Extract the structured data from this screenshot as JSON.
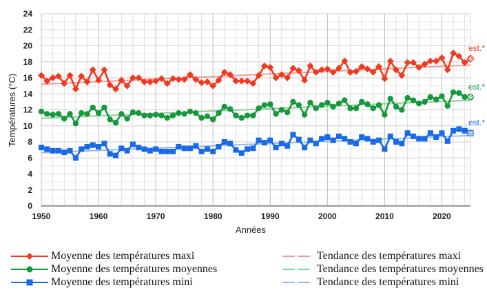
{
  "chart_data": {
    "type": "line",
    "title": "",
    "xlabel": "Années",
    "ylabel": "Températures (°C)",
    "xlim": [
      1950,
      2025
    ],
    "ylim": [
      0,
      24
    ],
    "x_ticks": [
      1950,
      1960,
      1970,
      1980,
      1990,
      2000,
      2010,
      2020
    ],
    "y_ticks": [
      0,
      2,
      4,
      6,
      8,
      10,
      12,
      14,
      16,
      18,
      20,
      22,
      24
    ],
    "grid": true,
    "legend_position": "bottom",
    "estimate_label": "est.*",
    "estimated_year": 2025,
    "x": [
      1950,
      1951,
      1952,
      1953,
      1954,
      1955,
      1956,
      1957,
      1958,
      1959,
      1960,
      1961,
      1962,
      1963,
      1964,
      1965,
      1966,
      1967,
      1968,
      1969,
      1970,
      1971,
      1972,
      1973,
      1974,
      1975,
      1976,
      1977,
      1978,
      1979,
      1980,
      1981,
      1982,
      1983,
      1984,
      1985,
      1986,
      1987,
      1988,
      1989,
      1990,
      1991,
      1992,
      1993,
      1994,
      1995,
      1996,
      1997,
      1998,
      1999,
      2000,
      2001,
      2002,
      2003,
      2004,
      2005,
      2006,
      2007,
      2008,
      2009,
      2010,
      2011,
      2012,
      2013,
      2014,
      2015,
      2016,
      2017,
      2018,
      2019,
      2020,
      2021,
      2022,
      2023,
      2024,
      2025
    ],
    "series": [
      {
        "name": "Moyenne des températures maxi",
        "color": "#f2391e",
        "marker": "diamond",
        "values": [
          16.3,
          15.6,
          16.0,
          16.2,
          15.3,
          16.3,
          14.6,
          16.2,
          15.5,
          17.0,
          15.7,
          17.0,
          15.1,
          14.6,
          15.7,
          15.0,
          16.0,
          16.0,
          15.5,
          15.5,
          15.6,
          15.9,
          15.3,
          15.9,
          15.8,
          15.8,
          16.4,
          15.8,
          15.4,
          15.5,
          15.0,
          15.7,
          16.7,
          16.4,
          15.6,
          15.6,
          15.6,
          15.3,
          16.3,
          17.5,
          17.3,
          16.0,
          16.4,
          16.0,
          17.2,
          16.9,
          15.7,
          17.5,
          16.7,
          17.0,
          17.1,
          16.7,
          17.2,
          18.1,
          16.7,
          16.8,
          17.4,
          17.1,
          16.7,
          17.4,
          15.9,
          18.1,
          17.0,
          16.3,
          17.9,
          17.9,
          17.3,
          17.7,
          18.1,
          18.1,
          18.5,
          17.0,
          19.1,
          18.7,
          17.9,
          18.4
        ]
      },
      {
        "name": "Moyenne des températures moyennes",
        "color": "#15993c",
        "marker": "circle",
        "values": [
          11.8,
          11.5,
          11.4,
          11.5,
          10.9,
          11.5,
          10.3,
          11.6,
          11.5,
          12.3,
          11.6,
          12.3,
          10.8,
          10.4,
          11.5,
          10.9,
          11.7,
          11.6,
          11.3,
          11.3,
          11.4,
          11.3,
          11.0,
          11.3,
          11.6,
          11.5,
          11.8,
          11.6,
          11.0,
          11.2,
          10.8,
          11.6,
          12.4,
          12.1,
          11.3,
          11.0,
          11.3,
          11.3,
          12.2,
          12.6,
          12.7,
          11.5,
          12.0,
          11.7,
          13.0,
          12.6,
          11.4,
          12.9,
          12.2,
          12.6,
          12.9,
          12.4,
          12.8,
          13.2,
          12.2,
          12.2,
          13.0,
          12.7,
          12.2,
          12.6,
          11.4,
          13.4,
          12.4,
          12.0,
          13.5,
          13.2,
          12.8,
          13.0,
          13.6,
          13.3,
          13.7,
          12.5,
          14.2,
          14.1,
          13.6,
          13.6
        ]
      },
      {
        "name": "Moyenne des températures mini",
        "color": "#1a6ae8",
        "marker": "square",
        "values": [
          7.3,
          7.1,
          6.9,
          6.9,
          6.7,
          6.9,
          6.0,
          7.1,
          7.4,
          7.6,
          7.4,
          7.8,
          6.5,
          6.3,
          7.2,
          6.9,
          7.7,
          7.3,
          7.1,
          6.9,
          7.1,
          6.8,
          6.8,
          6.8,
          7.4,
          7.2,
          7.2,
          7.5,
          6.8,
          7.1,
          6.8,
          7.4,
          8.0,
          7.8,
          7.0,
          6.6,
          7.1,
          7.2,
          8.2,
          7.9,
          8.2,
          7.3,
          7.8,
          7.5,
          8.9,
          8.3,
          7.3,
          8.2,
          7.8,
          8.4,
          8.6,
          8.2,
          8.7,
          8.4,
          8.0,
          7.8,
          8.6,
          8.4,
          8.0,
          8.2,
          7.1,
          8.7,
          8.0,
          7.8,
          9.1,
          8.7,
          8.4,
          8.4,
          9.1,
          8.6,
          9.1,
          8.1,
          9.4,
          9.6,
          9.4,
          9.1
        ]
      }
    ],
    "trends": [
      {
        "name": "Tendance des températures maxi",
        "color": "#f09a94",
        "start": [
          1950,
          15.2
        ],
        "end": [
          2025,
          17.6
        ]
      },
      {
        "name": "Tendance des températures moyennes",
        "color": "#8fcf9f",
        "start": [
          1950,
          10.95
        ],
        "end": [
          2025,
          13.2
        ]
      },
      {
        "name": "Tendance des températures mini",
        "color": "#93b9f0",
        "start": [
          1950,
          6.65
        ],
        "end": [
          2025,
          8.8
        ]
      }
    ]
  }
}
